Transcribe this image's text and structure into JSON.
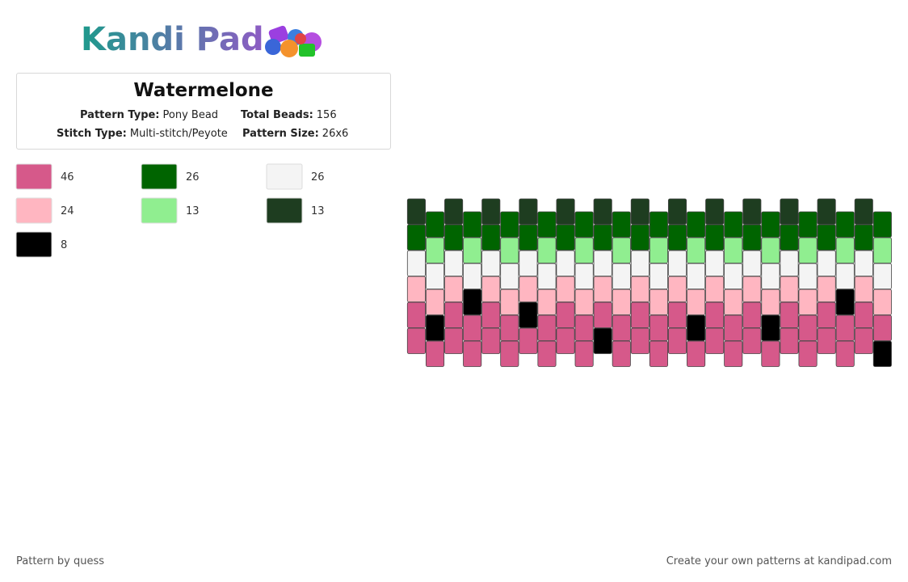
{
  "logo": {
    "text": "Kandi Pad"
  },
  "title": "Watermelone",
  "info": [
    {
      "label": "Pattern Type:",
      "value": "Pony Bead"
    },
    {
      "label": "Total Beads:",
      "value": "156"
    },
    {
      "label": "Stitch Type:",
      "value": "Multi-stitch/Peyote"
    },
    {
      "label": "Pattern Size:",
      "value": "26x6"
    }
  ],
  "legend": [
    {
      "color": "#d6598a",
      "count": 46
    },
    {
      "color": "#006400",
      "count": 26
    },
    {
      "color": "#f4f4f4",
      "count": 26
    },
    {
      "color": "#ffb6c1",
      "count": 24
    },
    {
      "color": "#90ee90",
      "count": 13
    },
    {
      "color": "#1e3d20",
      "count": 13
    },
    {
      "color": "#000000",
      "count": 8
    }
  ],
  "pattern": {
    "columns": [
      [
        5,
        1,
        2,
        3,
        0,
        0
      ],
      [
        1,
        4,
        2,
        3,
        6,
        0
      ],
      [
        5,
        1,
        2,
        3,
        0,
        0
      ],
      [
        1,
        4,
        2,
        6,
        0,
        0
      ],
      [
        5,
        1,
        2,
        3,
        0,
        0
      ],
      [
        1,
        4,
        2,
        3,
        0,
        0
      ],
      [
        5,
        1,
        2,
        3,
        6,
        0
      ],
      [
        1,
        4,
        2,
        3,
        0,
        0
      ],
      [
        5,
        1,
        2,
        3,
        0,
        0
      ],
      [
        1,
        4,
        2,
        3,
        0,
        0
      ],
      [
        5,
        1,
        2,
        3,
        0,
        6
      ],
      [
        1,
        4,
        2,
        3,
        0,
        0
      ],
      [
        5,
        1,
        2,
        3,
        0,
        0
      ],
      [
        1,
        4,
        2,
        3,
        0,
        0
      ],
      [
        5,
        1,
        2,
        3,
        0,
        0
      ],
      [
        1,
        4,
        2,
        3,
        6,
        0
      ],
      [
        5,
        1,
        2,
        3,
        0,
        0
      ],
      [
        1,
        4,
        2,
        3,
        0,
        0
      ],
      [
        5,
        1,
        2,
        3,
        0,
        0
      ],
      [
        1,
        4,
        2,
        3,
        6,
        0
      ],
      [
        5,
        1,
        2,
        3,
        0,
        0
      ],
      [
        1,
        4,
        2,
        3,
        0,
        0
      ],
      [
        5,
        1,
        2,
        3,
        0,
        0
      ],
      [
        1,
        4,
        2,
        6,
        0,
        0
      ],
      [
        5,
        1,
        2,
        3,
        0,
        0
      ],
      [
        1,
        4,
        2,
        3,
        0,
        6
      ]
    ]
  },
  "footer": {
    "left": "Pattern by quess",
    "right": "Create your own patterns at kandipad.com"
  }
}
